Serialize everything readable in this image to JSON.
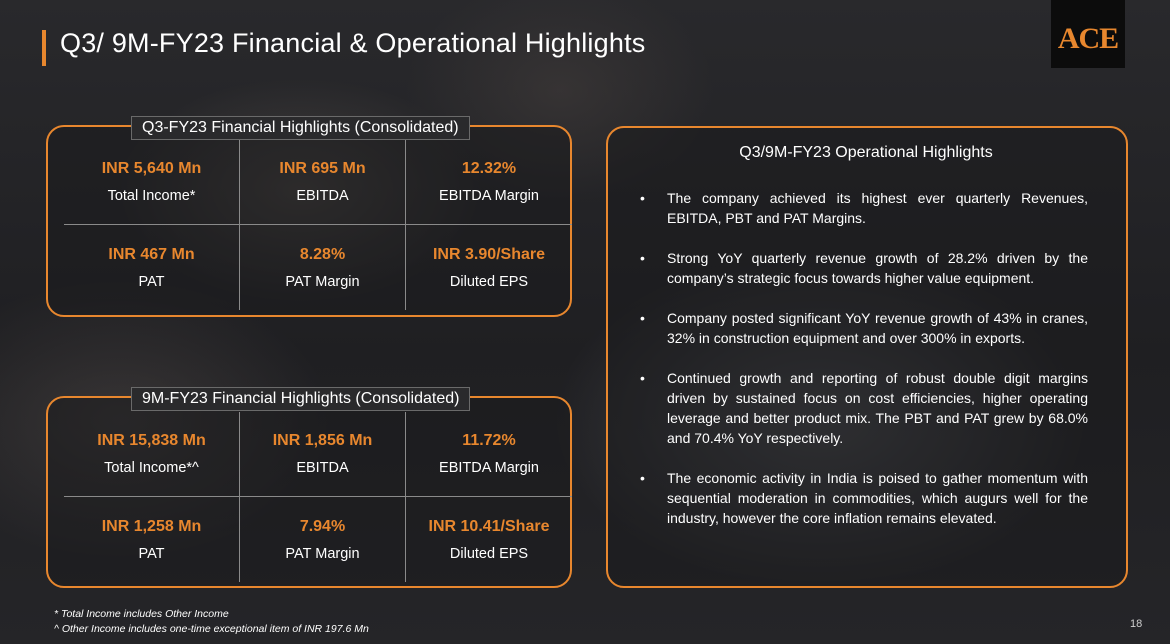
{
  "header": {
    "title": "Q3/ 9M-FY23 Financial & Operational Highlights",
    "logo_text": "ACE"
  },
  "q3_panel": {
    "label": "Q3-FY23 Financial Highlights (Consolidated)",
    "cells": [
      {
        "value": "INR 5,640 Mn",
        "label": "Total Income*"
      },
      {
        "value": "INR 695 Mn",
        "label": "EBITDA"
      },
      {
        "value": "12.32%",
        "label": "EBITDA Margin"
      },
      {
        "value": "INR 467 Mn",
        "label": "PAT"
      },
      {
        "value": "8.28%",
        "label": "PAT Margin"
      },
      {
        "value": "INR 3.90/Share",
        "label": "Diluted EPS"
      }
    ]
  },
  "nm_panel": {
    "label": "9M-FY23 Financial Highlights (Consolidated)",
    "cells": [
      {
        "value": "INR 15,838 Mn",
        "label": "Total Income*^"
      },
      {
        "value": "INR 1,856 Mn",
        "label": "EBITDA"
      },
      {
        "value": "11.72%",
        "label": "EBITDA Margin"
      },
      {
        "value": "INR 1,258 Mn",
        "label": "PAT"
      },
      {
        "value": "7.94%",
        "label": "PAT Margin"
      },
      {
        "value": "INR 10.41/Share",
        "label": "Diluted EPS"
      }
    ]
  },
  "operational": {
    "title": "Q3/9M-FY23 Operational Highlights",
    "bullets": [
      "The company achieved its highest ever quarterly Revenues, EBITDA, PBT and PAT Margins.",
      "Strong YoY quarterly revenue growth of 28.2% driven by the company’s strategic focus towards higher value equipment.",
      "Company posted significant YoY revenue growth of 43% in cranes, 32% in construction equipment and over 300% in exports.",
      "Continued growth and reporting of robust double digit margins driven by sustained focus on cost efficiencies, higher operating leverage and better product mix. The PBT and PAT grew by 68.0% and 70.4% YoY respectively.",
      "The economic activity in India is poised to gather momentum with sequential moderation in commodities, which augurs well for the industry, however the core inflation remains elevated."
    ]
  },
  "footnotes": {
    "note1": "* Total Income includes Other Income",
    "note2": "^ Other Income includes one-time exceptional item of INR 197.6 Mn"
  },
  "page_number": "18",
  "colors": {
    "accent": "#e8872e",
    "text": "#ffffff",
    "background": "#202022"
  }
}
